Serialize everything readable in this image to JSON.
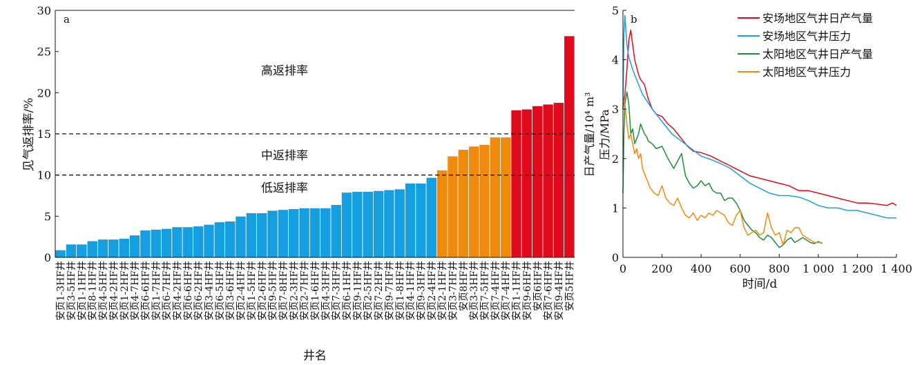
{
  "chart_data": [
    {
      "type": "bar",
      "panel_label": "a",
      "xlabel": "井名",
      "ylabel": "见气返排率/%",
      "ylim": [
        0,
        30
      ],
      "yticks": [
        0,
        5,
        10,
        15,
        20,
        25,
        30
      ],
      "grid": false,
      "categories": [
        "安页1-3HF井",
        "安页3-5HF井",
        "安页1-1HF井",
        "安页8-1HF井",
        "安页4-5HF井",
        "安页4-2HF井",
        "安页1-2HF井",
        "安页4-7HF井",
        "安页6-6HF井",
        "安页1-7HF井",
        "安页6-7HF井",
        "安页4-2HF井",
        "安页6-6HF井",
        "安页6-2HF井",
        "安页3-4HF井",
        "安页6-5HF井",
        "安页3-6HF井",
        "安页2-4HF井",
        "安页1-5HF井",
        "安页2-6HF井",
        "安页9-5HF井",
        "安页7-8HF井",
        "安页2-3HF井",
        "安页2-7HF井",
        "安页1-6HF井",
        "安页4-3HF井",
        "安页7-3HF井",
        "安页6-1HF井",
        "安页9-1HF井",
        "安页2-5HF井",
        "安页7-2HF井",
        "安页9-7HF井",
        "安页1-8HF井",
        "安页4-1HF井",
        "安页9-3HF井",
        "安页2-4HF井",
        "安页2-1HF井",
        "安页3-7HF井",
        "安页8HF井",
        "安页3-3HF井",
        "安页7-5HF井",
        "安页7-4HF井",
        "安页7-4HF井",
        "安页1-1HF井",
        "安页9-6HF井",
        "安页6HF井",
        "安页7-6HF井",
        "安页9-4HF井",
        "安页5HF井"
      ],
      "values": [
        0.9,
        1.6,
        1.6,
        2.0,
        2.2,
        2.2,
        2.3,
        2.7,
        3.3,
        3.4,
        3.5,
        3.7,
        3.7,
        3.8,
        4.0,
        4.3,
        4.4,
        5.0,
        5.4,
        5.4,
        5.7,
        5.8,
        5.9,
        6.0,
        6.0,
        6.0,
        6.4,
        7.9,
        8.0,
        8.0,
        8.1,
        8.2,
        8.3,
        9.0,
        9.0,
        9.7,
        10.6,
        12.3,
        13.1,
        13.5,
        13.7,
        14.6,
        14.6,
        17.9,
        18.0,
        18.4,
        18.6,
        18.8,
        26.9
      ],
      "colors": {
        "low": "#159ee0",
        "medium": "#ef8a0c",
        "high": "#df0b1c"
      },
      "thresholds": [
        10,
        15
      ],
      "annotations": [
        "高返排率",
        "中返排率",
        "低返排率"
      ]
    },
    {
      "type": "line",
      "panel_label": "b",
      "xlabel": "时间/d",
      "ylabel": "日产气量/10⁴ m³",
      "ylabel2": "压力/MPa",
      "xlim": [
        0,
        1400
      ],
      "ylim": [
        0,
        5
      ],
      "xticks": [
        0,
        200,
        400,
        600,
        800,
        1000,
        1200,
        1400
      ],
      "xtick_labels": [
        "0",
        "200",
        "400",
        "600",
        "800",
        "1 000",
        "1 200",
        "1 400"
      ],
      "yticks": [
        0,
        1,
        2,
        3,
        4,
        5
      ],
      "grid": false,
      "legend_position": "top-right",
      "series": [
        {
          "name": "安场地区气井日产气量",
          "color": "#df0b1c",
          "x": [
            0,
            10,
            20,
            30,
            40,
            50,
            60,
            70,
            80,
            90,
            100,
            110,
            120,
            130,
            150,
            170,
            200,
            230,
            260,
            290,
            310,
            330,
            360,
            400,
            450,
            500,
            550,
            600,
            650,
            700,
            750,
            800,
            850,
            900,
            950,
            1000,
            1050,
            1100,
            1150,
            1200,
            1250,
            1300,
            1350,
            1380,
            1400
          ],
          "y": [
            3.0,
            3.3,
            3.8,
            4.4,
            4.6,
            4.3,
            4.0,
            3.85,
            3.7,
            3.6,
            3.55,
            3.5,
            3.35,
            3.2,
            3.0,
            2.9,
            2.85,
            2.7,
            2.6,
            2.45,
            2.35,
            2.25,
            2.15,
            2.12,
            2.05,
            1.95,
            1.85,
            1.75,
            1.65,
            1.6,
            1.55,
            1.5,
            1.45,
            1.35,
            1.35,
            1.3,
            1.25,
            1.2,
            1.15,
            1.1,
            1.1,
            1.08,
            1.05,
            1.1,
            1.05
          ]
        },
        {
          "name": "安场地区气井压力",
          "color": "#1b9fe0",
          "x": [
            0,
            5,
            10,
            20,
            30,
            50,
            80,
            100,
            150,
            200,
            250,
            300,
            350,
            400,
            450,
            500,
            550,
            600,
            650,
            700,
            750,
            800,
            850,
            900,
            950,
            1000,
            1050,
            1100,
            1150,
            1200,
            1250,
            1300,
            1350,
            1400
          ],
          "y": [
            3.0,
            4.5,
            4.9,
            4.3,
            4.05,
            3.8,
            3.5,
            3.3,
            3.0,
            2.75,
            2.5,
            2.35,
            2.2,
            2.05,
            1.98,
            1.9,
            1.8,
            1.65,
            1.5,
            1.4,
            1.3,
            1.25,
            1.25,
            1.22,
            1.15,
            1.05,
            1.0,
            1.0,
            0.95,
            0.95,
            0.9,
            0.85,
            0.8,
            0.8
          ]
        },
        {
          "name": "太阳地区气井日产气量",
          "color": "#1b8e3a",
          "x": [
            0,
            5,
            10,
            20,
            30,
            40,
            50,
            60,
            70,
            80,
            90,
            100,
            110,
            120,
            130,
            150,
            170,
            200,
            230,
            260,
            280,
            300,
            320,
            340,
            360,
            380,
            400,
            420,
            440,
            460,
            480,
            500,
            520,
            540,
            560,
            580,
            600,
            620,
            640,
            660,
            680,
            700,
            720,
            740,
            760,
            780,
            800,
            820,
            840,
            860,
            880,
            900,
            920,
            940,
            960,
            980,
            1000,
            1020
          ],
          "y": [
            1.3,
            2.5,
            3.1,
            3.35,
            3.1,
            2.5,
            2.6,
            2.3,
            2.4,
            2.5,
            2.7,
            2.6,
            2.5,
            2.45,
            2.35,
            2.3,
            2.2,
            2.25,
            2.0,
            1.8,
            1.95,
            2.1,
            1.65,
            1.5,
            1.4,
            1.45,
            1.55,
            1.45,
            1.5,
            1.35,
            1.3,
            1.3,
            1.15,
            1.2,
            1.2,
            1.1,
            0.95,
            0.75,
            0.65,
            0.55,
            0.5,
            0.4,
            0.35,
            0.45,
            0.4,
            0.3,
            0.2,
            0.25,
            0.35,
            0.4,
            0.3,
            0.35,
            0.4,
            0.35,
            0.3,
            0.28,
            0.32,
            0.28
          ]
        },
        {
          "name": "太阳地区气井压力",
          "color": "#ef8a0c",
          "x": [
            0,
            10,
            20,
            30,
            40,
            50,
            60,
            70,
            80,
            90,
            100,
            110,
            120,
            140,
            160,
            180,
            200,
            220,
            240,
            260,
            280,
            300,
            320,
            340,
            360,
            380,
            400,
            420,
            440,
            460,
            480,
            500,
            520,
            540,
            560,
            580,
            600,
            620,
            640,
            660,
            680,
            700,
            720,
            740,
            760,
            780,
            800,
            820,
            840,
            860,
            880,
            900,
            920,
            940,
            960,
            980,
            1000,
            1020
          ],
          "y": [
            3.2,
            3.1,
            2.7,
            2.4,
            2.5,
            2.3,
            2.1,
            2.2,
            2.0,
            2.1,
            1.8,
            1.7,
            1.6,
            1.4,
            1.3,
            1.25,
            1.45,
            1.2,
            1.1,
            1.05,
            1.2,
            1.0,
            0.85,
            0.8,
            0.9,
            0.75,
            0.85,
            0.8,
            0.9,
            0.85,
            0.95,
            0.9,
            0.85,
            0.7,
            0.65,
            0.85,
            0.95,
            0.6,
            0.45,
            0.5,
            0.55,
            0.45,
            0.5,
            0.9,
            0.6,
            0.45,
            0.5,
            0.25,
            0.55,
            0.5,
            0.6,
            0.6,
            0.45,
            0.4,
            0.35,
            0.3,
            0.3,
            0.3
          ]
        }
      ]
    }
  ]
}
